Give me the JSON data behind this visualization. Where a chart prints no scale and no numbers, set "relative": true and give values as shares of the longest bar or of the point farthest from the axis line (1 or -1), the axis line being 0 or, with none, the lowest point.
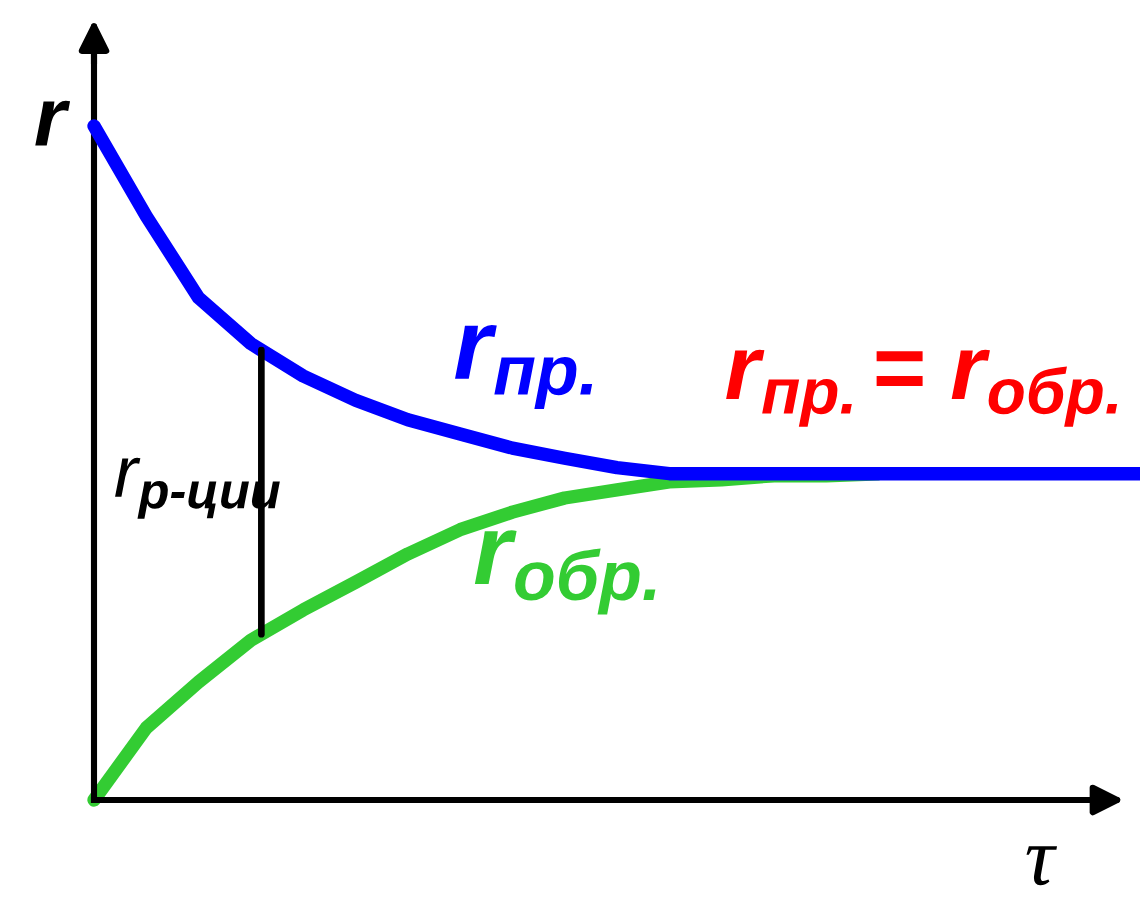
{
  "chart_data": {
    "type": "line",
    "relative": true,
    "xlabel": "τ",
    "ylabel": "r",
    "tick_labels": false,
    "legend": false,
    "categories": [
      null,
      null,
      null,
      null,
      null,
      null,
      null,
      null,
      null,
      null,
      null,
      null,
      null,
      null,
      null,
      null,
      null,
      null,
      null,
      null,
      null
    ],
    "series": [
      {
        "name": "r$_{обр.}$",
        "color": "#33cc33",
        "values": [
          0,
          0.107,
          0.175,
          0.237,
          0.282,
          0.323,
          0.365,
          0.401,
          0.427,
          0.448,
          0.46,
          0.472,
          0.475,
          0.481,
          0.481,
          0.484,
          null,
          null,
          null,
          null,
          null
        ]
      },
      {
        "name": "r$_{пр.}$",
        "color": "#0000ff",
        "values": [
          1,
          0.866,
          0.745,
          0.677,
          0.629,
          0.593,
          0.564,
          0.543,
          0.522,
          0.507,
          0.493,
          0.484,
          0.484,
          0.484,
          0.484,
          0.484,
          0.484,
          0.484,
          0.484,
          0.484,
          0.484
        ]
      }
    ],
    "annotations": [
      "r$_{р‐ции}$",
      {
        "text": "r$_{пр.}$= r$_{обр.}$",
        "y": 0.484
      }
    ]
  }
}
